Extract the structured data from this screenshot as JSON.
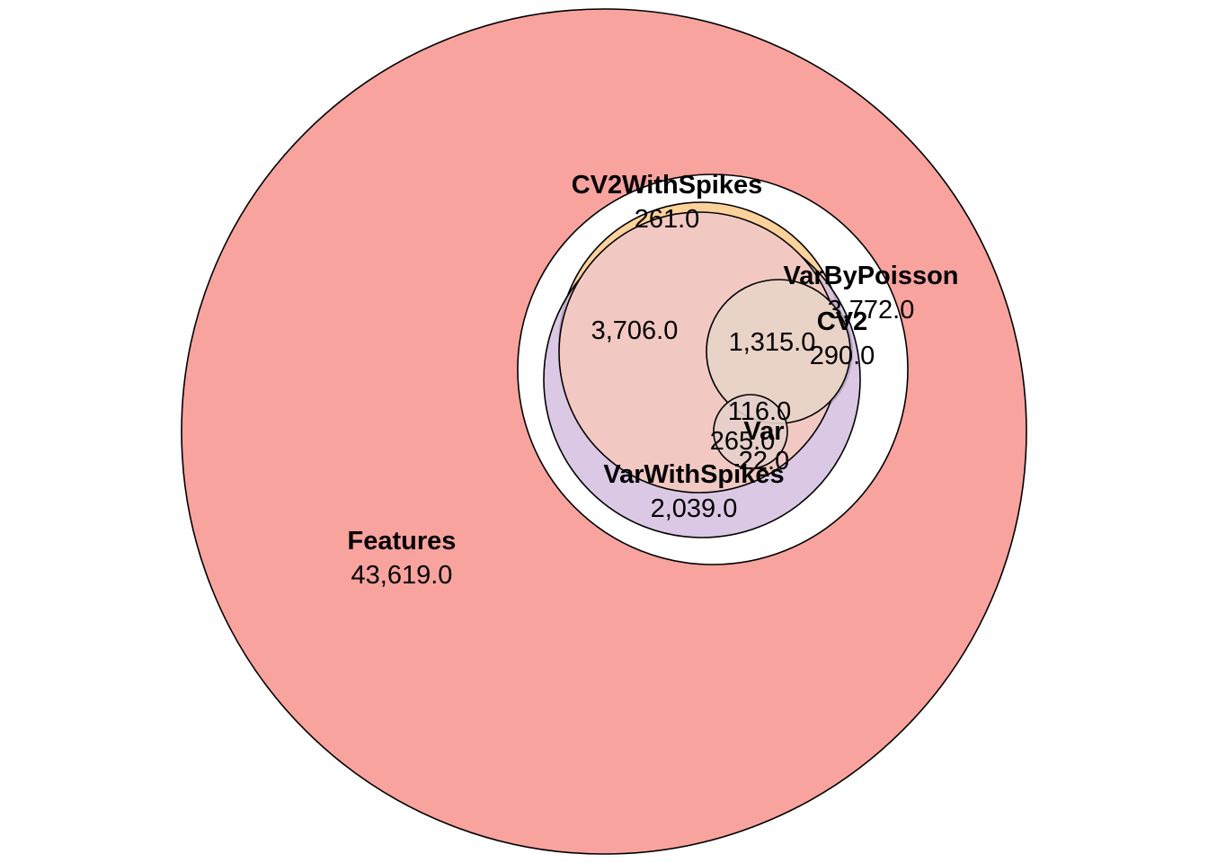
{
  "diagram": {
    "type": "euler",
    "sets": [
      {
        "id": "features",
        "name": "Features",
        "color": "#F8A39E"
      },
      {
        "id": "varbypoisson",
        "name": "VarByPoisson",
        "color": "#FFFFFF"
      },
      {
        "id": "cv2withspikes",
        "name": "CV2WithSpikes",
        "color": "#FDD19A"
      },
      {
        "id": "varwithspikes",
        "name": "VarWithSpikes",
        "color": "#D5BEDF"
      },
      {
        "id": "cv2",
        "name": "CV2",
        "color": "#C6E6C0"
      },
      {
        "id": "var",
        "name": "Var",
        "color": "#BDD6EA"
      }
    ],
    "counts": [
      {
        "id": "features_only",
        "value": "43,619.0"
      },
      {
        "id": "varbypoisson_only",
        "value": "3,772.0"
      },
      {
        "id": "cv2withspikes_only",
        "value": "261.0"
      },
      {
        "id": "varwithspikes_only",
        "value": "2,039.0"
      },
      {
        "id": "cv2_only",
        "value": "290.0"
      },
      {
        "id": "cv2withspikes_varwithspikes",
        "value": "3,706.0"
      },
      {
        "id": "cv2_overlap",
        "value": "1,315.0"
      },
      {
        "id": "var_cv2_overlap",
        "value": "116.0"
      },
      {
        "id": "var_overlap",
        "value": "265.0"
      },
      {
        "id": "var_only",
        "value": "22.0"
      }
    ]
  }
}
